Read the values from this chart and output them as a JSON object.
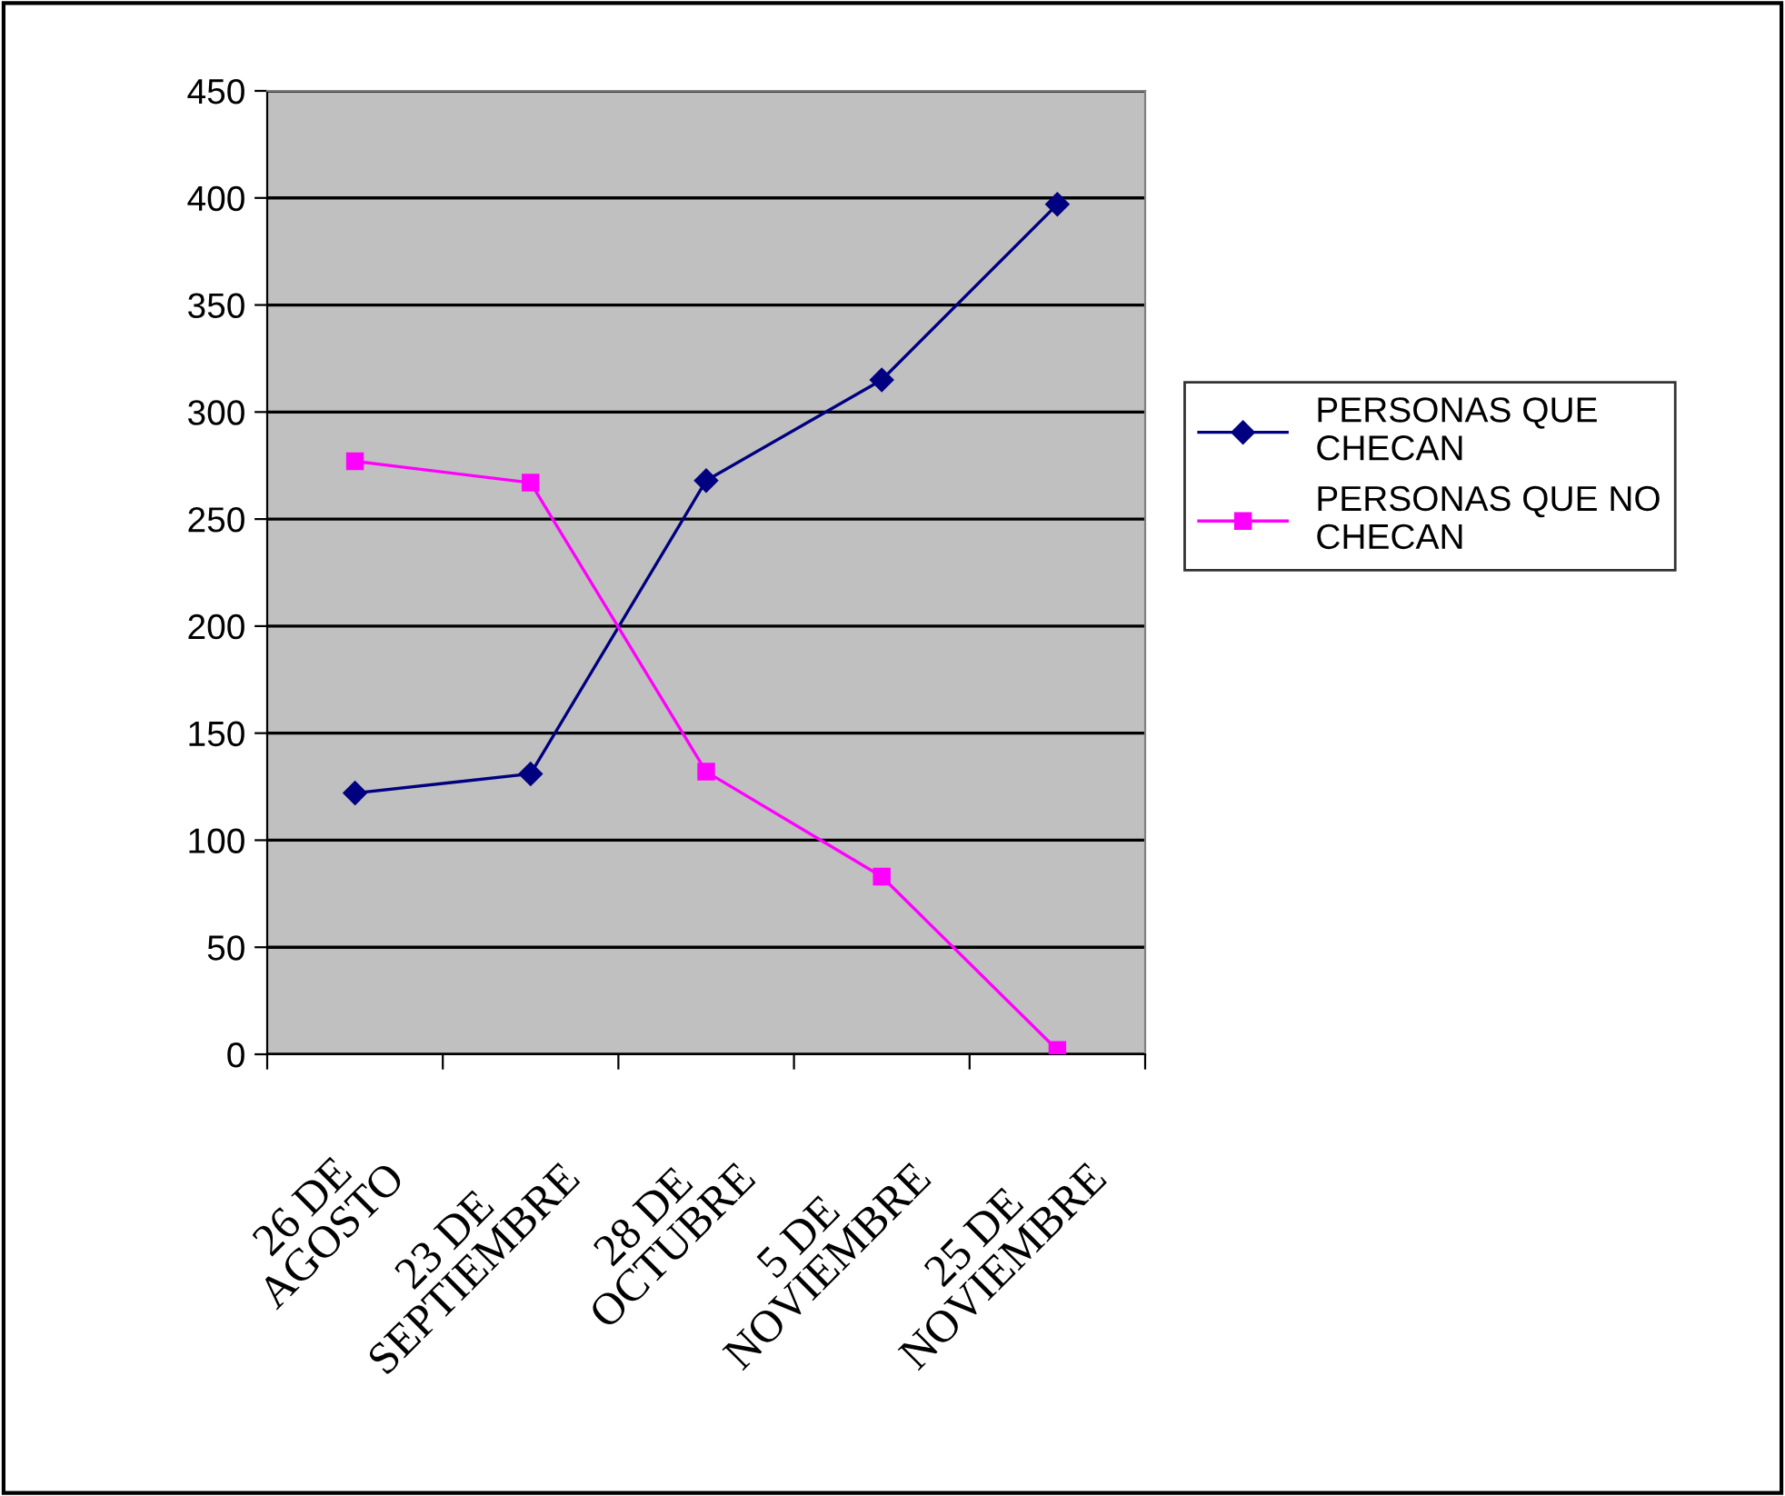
{
  "chart_data": {
    "type": "line",
    "categories": [
      "26 DE\nAGOSTO",
      "23 DE\nSEPTIEMBRE",
      "28 DE\nOCTUBRE",
      "5 DE\nNOVIEMBRE",
      "25 DE\nNOVIEMBRE"
    ],
    "series": [
      {
        "name": "PERSONAS QUE\nCHECAN",
        "color": "#000080",
        "marker": "diamond",
        "values": [
          122,
          131,
          268,
          315,
          397
        ]
      },
      {
        "name": "PERSONAS QUE NO\nCHECAN",
        "color": "#ff00ff",
        "marker": "square",
        "values": [
          277,
          267,
          132,
          83,
          2
        ]
      }
    ],
    "ylim": [
      0,
      450
    ],
    "yticks": [
      0,
      50,
      100,
      150,
      200,
      250,
      300,
      350,
      400,
      450
    ],
    "grid": "y",
    "legend": "right",
    "line_style": "solid"
  }
}
